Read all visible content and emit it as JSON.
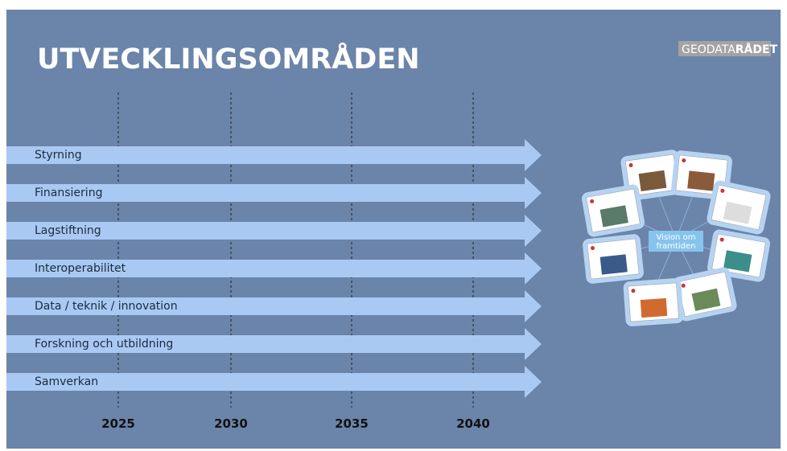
{
  "header": {
    "title": "UTVECKLINGSOMRÅDEN",
    "logo": {
      "part1": "GEODATA",
      "part2": "RÅDET"
    }
  },
  "rows": [
    "Styrning",
    "Finansiering",
    "Lagstiftning",
    "Interoperabilitet",
    "Data / teknik / innovation",
    "Forskning och utbildning",
    "Samverkan"
  ],
  "years": [
    "2025",
    "2030",
    "2035",
    "2040"
  ],
  "vision": {
    "line1": "Vision om",
    "line2": "framtiden"
  }
}
